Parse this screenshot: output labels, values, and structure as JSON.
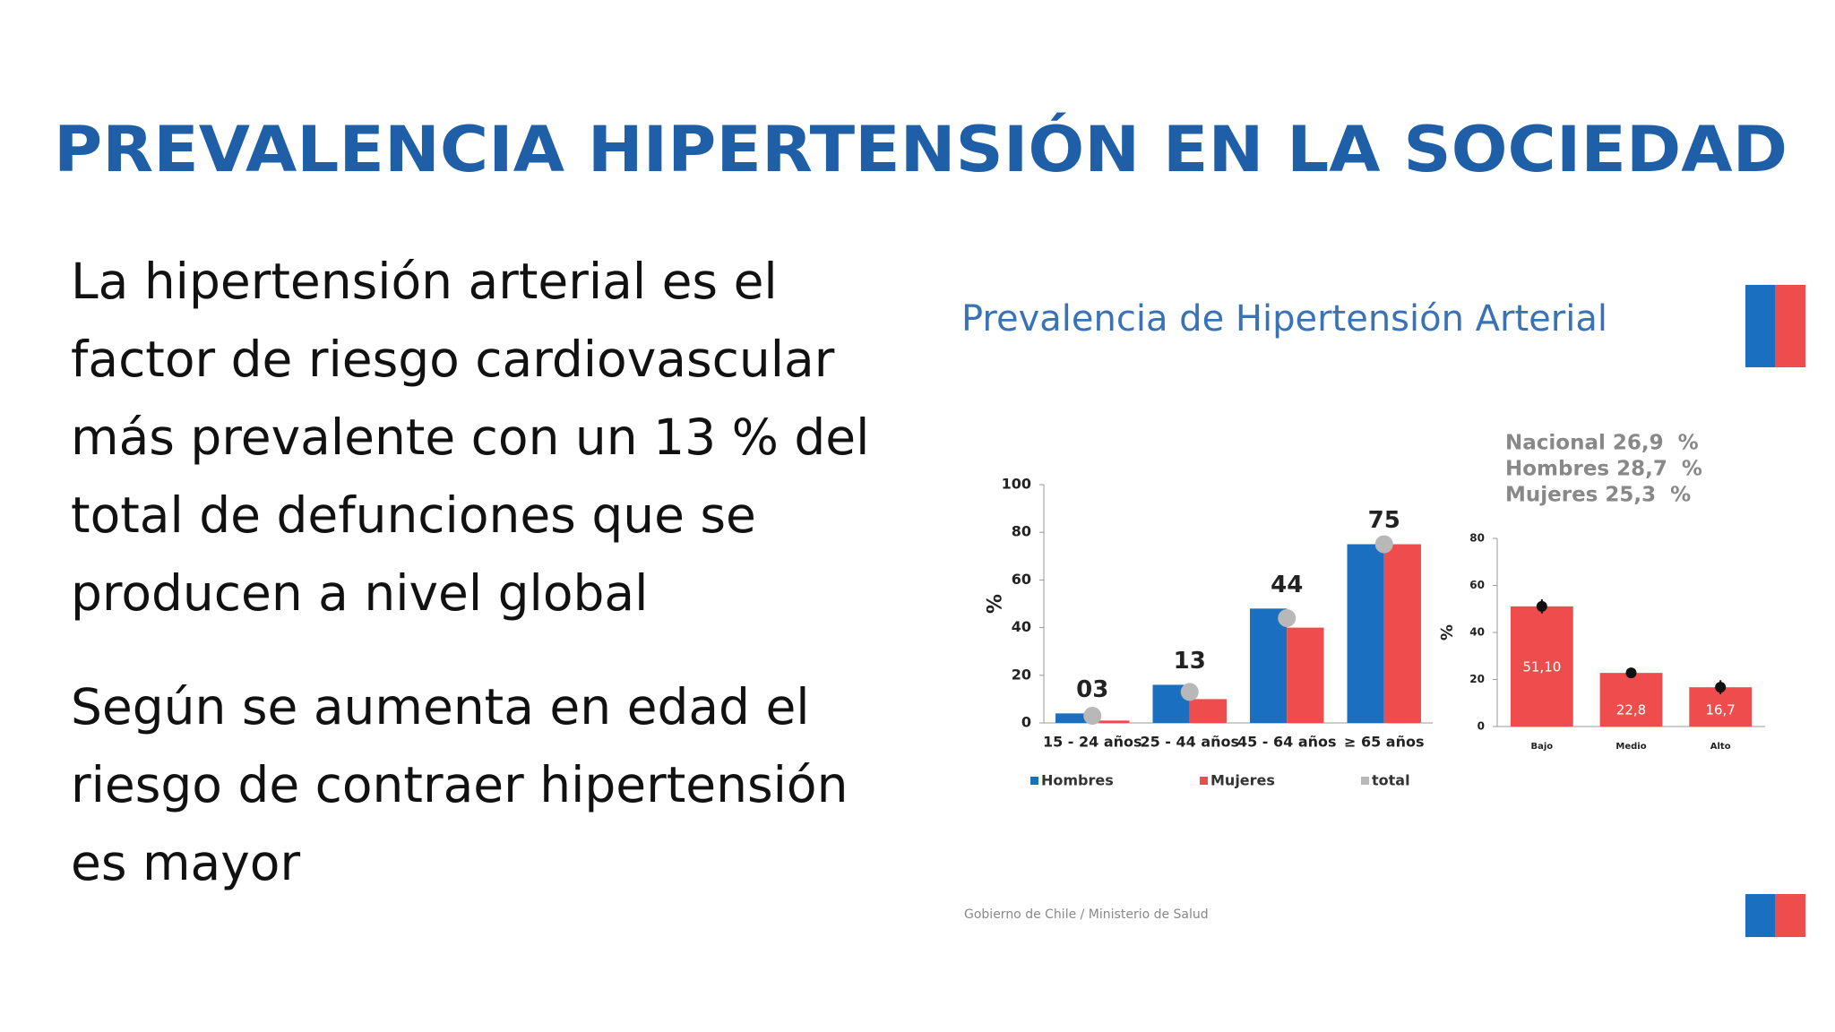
{
  "title": "PREVALENCIA HIPERTENSIÓN EN LA SOCIEDAD",
  "paragraphs": [
    [
      "La hipertensión arterial es el",
      "factor de riesgo cardiovascular",
      "más prevalente con un 13 % del",
      "total de defunciones que se",
      "producen a nivel global"
    ],
    [
      "Según se aumenta en edad el",
      "riesgo de contraer hipertensión",
      "es mayor"
    ]
  ],
  "figure_title": "Prevalencia de Hipertensión Arterial",
  "footer": "Gobierno de Chile / Ministerio de Salud",
  "chart_data": [
    {
      "type": "bar",
      "ylabel": "%",
      "categories": [
        "15 - 24 años",
        "25 - 44 años",
        "45 - 64 años",
        "≥ 65 años"
      ],
      "series": [
        {
          "name": "Hombres",
          "color": "#1a6fc0",
          "values": [
            4,
            16,
            48,
            75
          ]
        },
        {
          "name": "Mujeres",
          "color": "#ef4d4d",
          "values": [
            1,
            10,
            40,
            75
          ]
        },
        {
          "name": "total",
          "color": "#b8b8b8",
          "marker": "circle",
          "values": [
            3,
            13,
            44,
            75
          ],
          "value_labels": [
            "03",
            "13",
            "44",
            "75"
          ]
        }
      ],
      "ylim": [
        0,
        100
      ],
      "yticks": [
        0,
        20,
        40,
        60,
        80,
        100
      ],
      "legend": "bottom"
    },
    {
      "type": "bar",
      "ylabel": "%",
      "annotations": [
        "Nacional 26,9  %",
        "Hombres 28,7  %",
        "Mujeres 25,3  %"
      ],
      "categories": [
        "Bajo",
        "Medio",
        "Alto"
      ],
      "values": [
        51.1,
        22.8,
        16.7
      ],
      "value_labels": [
        "51,10",
        "22,8",
        "16,7"
      ],
      "errors": [
        3,
        1.5,
        3
      ],
      "color": "#ef4d4d",
      "ylim": [
        0,
        80
      ],
      "yticks": [
        0,
        20,
        40,
        60,
        80
      ]
    }
  ]
}
